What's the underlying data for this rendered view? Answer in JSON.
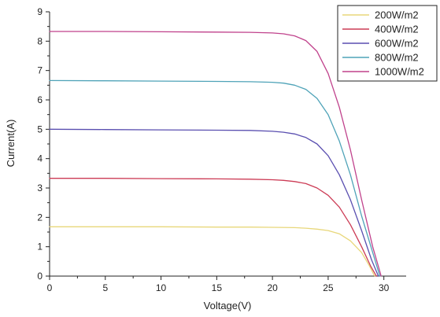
{
  "chart_data": {
    "type": "line",
    "xlabel": "Voltage(V)",
    "ylabel": "Current(A)",
    "xlim": [
      0,
      32
    ],
    "ylim": [
      0,
      9
    ],
    "x_ticks": [
      0,
      5,
      10,
      15,
      20,
      25,
      30
    ],
    "y_ticks": [
      0,
      1,
      2,
      3,
      4,
      5,
      6,
      7,
      8,
      9
    ],
    "grid": false,
    "legend_position": "top-right",
    "series": [
      {
        "name": "200W/m2",
        "color": "#e8d77a",
        "points": [
          [
            0,
            1.68
          ],
          [
            5,
            1.68
          ],
          [
            10,
            1.68
          ],
          [
            15,
            1.67
          ],
          [
            18,
            1.67
          ],
          [
            20,
            1.66
          ],
          [
            22,
            1.65
          ],
          [
            23,
            1.63
          ],
          [
            24,
            1.6
          ],
          [
            25,
            1.55
          ],
          [
            26,
            1.44
          ],
          [
            27,
            1.2
          ],
          [
            28,
            0.8
          ],
          [
            28.7,
            0.35
          ],
          [
            29.1,
            0.05
          ],
          [
            29.2,
            0
          ]
        ]
      },
      {
        "name": "400W/m2",
        "color": "#cc3b55",
        "points": [
          [
            0,
            3.33
          ],
          [
            5,
            3.33
          ],
          [
            10,
            3.32
          ],
          [
            15,
            3.31
          ],
          [
            18,
            3.3
          ],
          [
            20,
            3.28
          ],
          [
            21,
            3.26
          ],
          [
            22,
            3.22
          ],
          [
            23,
            3.15
          ],
          [
            24,
            3.0
          ],
          [
            25,
            2.75
          ],
          [
            26,
            2.35
          ],
          [
            27,
            1.75
          ],
          [
            28,
            1.0
          ],
          [
            28.8,
            0.35
          ],
          [
            29.3,
            0.02
          ],
          [
            29.35,
            0
          ]
        ]
      },
      {
        "name": "600W/m2",
        "color": "#5a4fb0",
        "points": [
          [
            0,
            5.0
          ],
          [
            5,
            4.99
          ],
          [
            10,
            4.98
          ],
          [
            15,
            4.97
          ],
          [
            18,
            4.96
          ],
          [
            20,
            4.93
          ],
          [
            21,
            4.9
          ],
          [
            22,
            4.84
          ],
          [
            23,
            4.72
          ],
          [
            24,
            4.5
          ],
          [
            25,
            4.1
          ],
          [
            26,
            3.45
          ],
          [
            27,
            2.6
          ],
          [
            28,
            1.55
          ],
          [
            28.9,
            0.55
          ],
          [
            29.45,
            0.05
          ],
          [
            29.5,
            0
          ]
        ]
      },
      {
        "name": "800W/m2",
        "color": "#4fa3b8",
        "points": [
          [
            0,
            6.66
          ],
          [
            5,
            6.65
          ],
          [
            10,
            6.64
          ],
          [
            15,
            6.63
          ],
          [
            18,
            6.62
          ],
          [
            20,
            6.6
          ],
          [
            21,
            6.57
          ],
          [
            22,
            6.5
          ],
          [
            23,
            6.36
          ],
          [
            24,
            6.05
          ],
          [
            25,
            5.5
          ],
          [
            26,
            4.6
          ],
          [
            27,
            3.45
          ],
          [
            28,
            2.05
          ],
          [
            29,
            0.8
          ],
          [
            29.6,
            0.05
          ],
          [
            29.65,
            0
          ]
        ]
      },
      {
        "name": "1000W/m2",
        "color": "#c0428c",
        "points": [
          [
            0,
            8.33
          ],
          [
            5,
            8.33
          ],
          [
            10,
            8.32
          ],
          [
            15,
            8.31
          ],
          [
            18,
            8.3
          ],
          [
            20,
            8.28
          ],
          [
            21,
            8.25
          ],
          [
            22,
            8.18
          ],
          [
            23,
            8.02
          ],
          [
            24,
            7.65
          ],
          [
            25,
            6.9
          ],
          [
            26,
            5.75
          ],
          [
            27,
            4.3
          ],
          [
            28,
            2.6
          ],
          [
            29,
            1.0
          ],
          [
            29.7,
            0.08
          ],
          [
            29.75,
            0
          ]
        ]
      }
    ]
  }
}
